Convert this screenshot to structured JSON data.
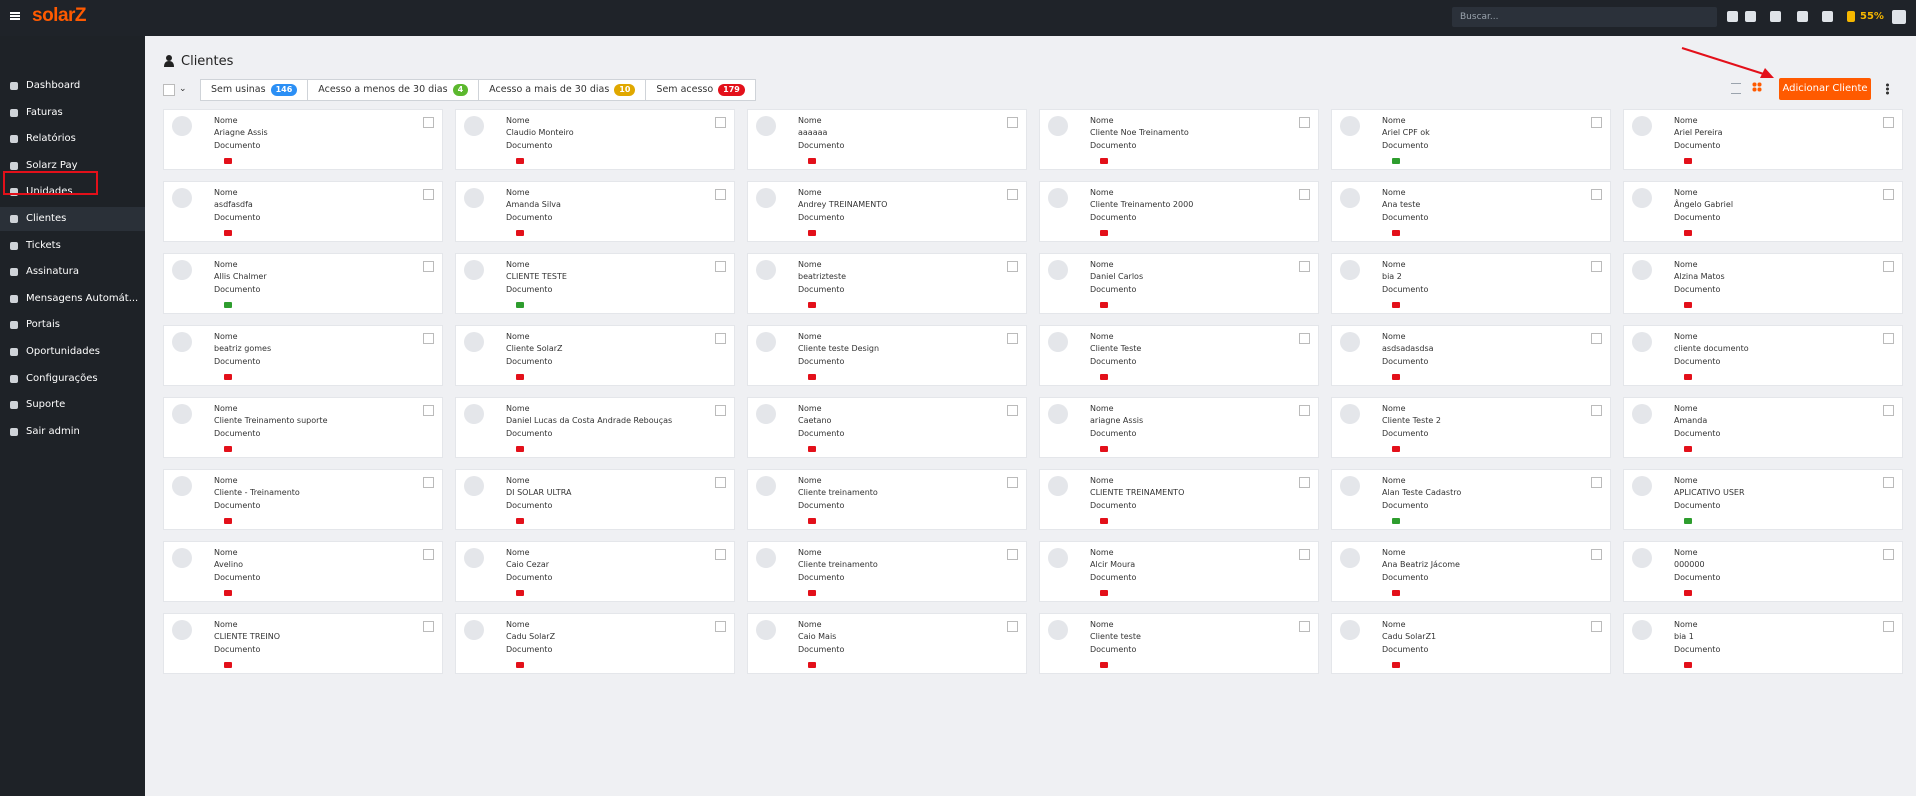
{
  "header": {
    "logo": "solarZ",
    "search_placeholder": "Buscar...",
    "percentage": "55%"
  },
  "sidebar": {
    "items": [
      "Dashboard",
      "Faturas",
      "Relatórios",
      "Solarz Pay",
      "Unidades",
      "Clientes",
      "Tickets",
      "Assinatura",
      "Mensagens Automát...",
      "Portais",
      "Oportunidades",
      "Configurações",
      "Suporte",
      "Sair admin"
    ],
    "active": 5
  },
  "page": {
    "title": "Clientes",
    "add_button": "Adicionar Cliente",
    "tabs": [
      {
        "label": "Sem usinas",
        "count": 146,
        "color": "#2b8ff5"
      },
      {
        "label": "Acesso a menos de 30 dias",
        "count": 4,
        "color": "#5cb82e"
      },
      {
        "label": "Acesso a mais de 30 dias",
        "count": 10,
        "color": "#e0a800"
      },
      {
        "label": "Sem acesso",
        "count": 179,
        "color": "#e3101a"
      }
    ]
  },
  "fields": {
    "name_label": "Nome",
    "document_label": "Documento"
  },
  "clients": [
    {
      "name": "Ariagne Assis",
      "badge_color": "#e3101a"
    },
    {
      "name": "Claudio Monteiro",
      "badge_color": "#e3101a"
    },
    {
      "name": "aaaaaa",
      "badge_color": "#e3101a"
    },
    {
      "name": "Cliente Noe Treinamento",
      "badge_color": "#e3101a"
    },
    {
      "name": "Ariel CPF ok",
      "badge_color": "#2e9d2e"
    },
    {
      "name": "Ariel Pereira",
      "badge_color": "#e3101a"
    },
    {
      "name": "asdfasdfa",
      "badge_color": "#e3101a"
    },
    {
      "name": "Amanda Silva",
      "badge_color": "#e3101a"
    },
    {
      "name": "Andrey TREINAMENTO",
      "badge_color": "#e3101a"
    },
    {
      "name": "Cliente Treinamento 2000",
      "badge_color": "#e3101a"
    },
    {
      "name": "Ana teste",
      "badge_color": "#e3101a"
    },
    {
      "name": "Ângelo Gabriel",
      "badge_color": "#e3101a"
    },
    {
      "name": "Allis Chalmer",
      "badge_color": "#2e9d2e"
    },
    {
      "name": "CLIENTE TESTE",
      "badge_color": "#2e9d2e"
    },
    {
      "name": "beatrizteste",
      "badge_color": "#e3101a"
    },
    {
      "name": "Daniel Carlos",
      "badge_color": "#e3101a"
    },
    {
      "name": "bia 2",
      "badge_color": "#e3101a"
    },
    {
      "name": "Alzina Matos",
      "badge_color": "#e3101a"
    },
    {
      "name": "beatriz gomes",
      "badge_color": "#e3101a"
    },
    {
      "name": "Cliente SolarZ",
      "badge_color": "#e3101a"
    },
    {
      "name": "Cliente teste Design",
      "badge_color": "#e3101a"
    },
    {
      "name": "Cliente Teste",
      "badge_color": "#e3101a"
    },
    {
      "name": "asdsadasdsa",
      "badge_color": "#e3101a"
    },
    {
      "name": "cliente documento",
      "badge_color": "#e3101a"
    },
    {
      "name": "Cliente Treinamento suporte",
      "badge_color": "#e3101a"
    },
    {
      "name": "Daniel Lucas da Costa Andrade Rebouças",
      "badge_color": "#e3101a"
    },
    {
      "name": "Caetano",
      "badge_color": "#e3101a"
    },
    {
      "name": "ariagne Assis",
      "badge_color": "#e3101a"
    },
    {
      "name": "Cliente Teste 2",
      "badge_color": "#e3101a"
    },
    {
      "name": "Amanda",
      "badge_color": "#e3101a"
    },
    {
      "name": "Cliente - Treinamento",
      "badge_color": "#e3101a"
    },
    {
      "name": "DI SOLAR ULTRA",
      "badge_color": "#e3101a"
    },
    {
      "name": "Cliente treinamento",
      "badge_color": "#e3101a"
    },
    {
      "name": "CLIENTE TREINAMENTO",
      "badge_color": "#e3101a"
    },
    {
      "name": "Alan Teste Cadastro",
      "badge_color": "#2e9d2e"
    },
    {
      "name": "APLICATIVO USER",
      "badge_color": "#2e9d2e"
    },
    {
      "name": "Avelino",
      "badge_color": "#e3101a"
    },
    {
      "name": "Caio Cezar",
      "badge_color": "#e3101a"
    },
    {
      "name": "Cliente treinamento",
      "badge_color": "#e3101a"
    },
    {
      "name": "Alcir Moura",
      "badge_color": "#e3101a"
    },
    {
      "name": "Ana Beatriz Jácome",
      "badge_color": "#e3101a"
    },
    {
      "name": "000000",
      "badge_color": "#e3101a"
    },
    {
      "name": "CLIENTE TREINO",
      "badge_color": "#e3101a"
    },
    {
      "name": "Cadu SolarZ",
      "badge_color": "#e3101a"
    },
    {
      "name": "Caio Mais",
      "badge_color": "#e3101a"
    },
    {
      "name": "Cliente teste",
      "badge_color": "#e3101a"
    },
    {
      "name": "Cadu SolarZ1",
      "badge_color": "#e3101a"
    },
    {
      "name": "bia 1",
      "badge_color": "#e3101a"
    }
  ]
}
